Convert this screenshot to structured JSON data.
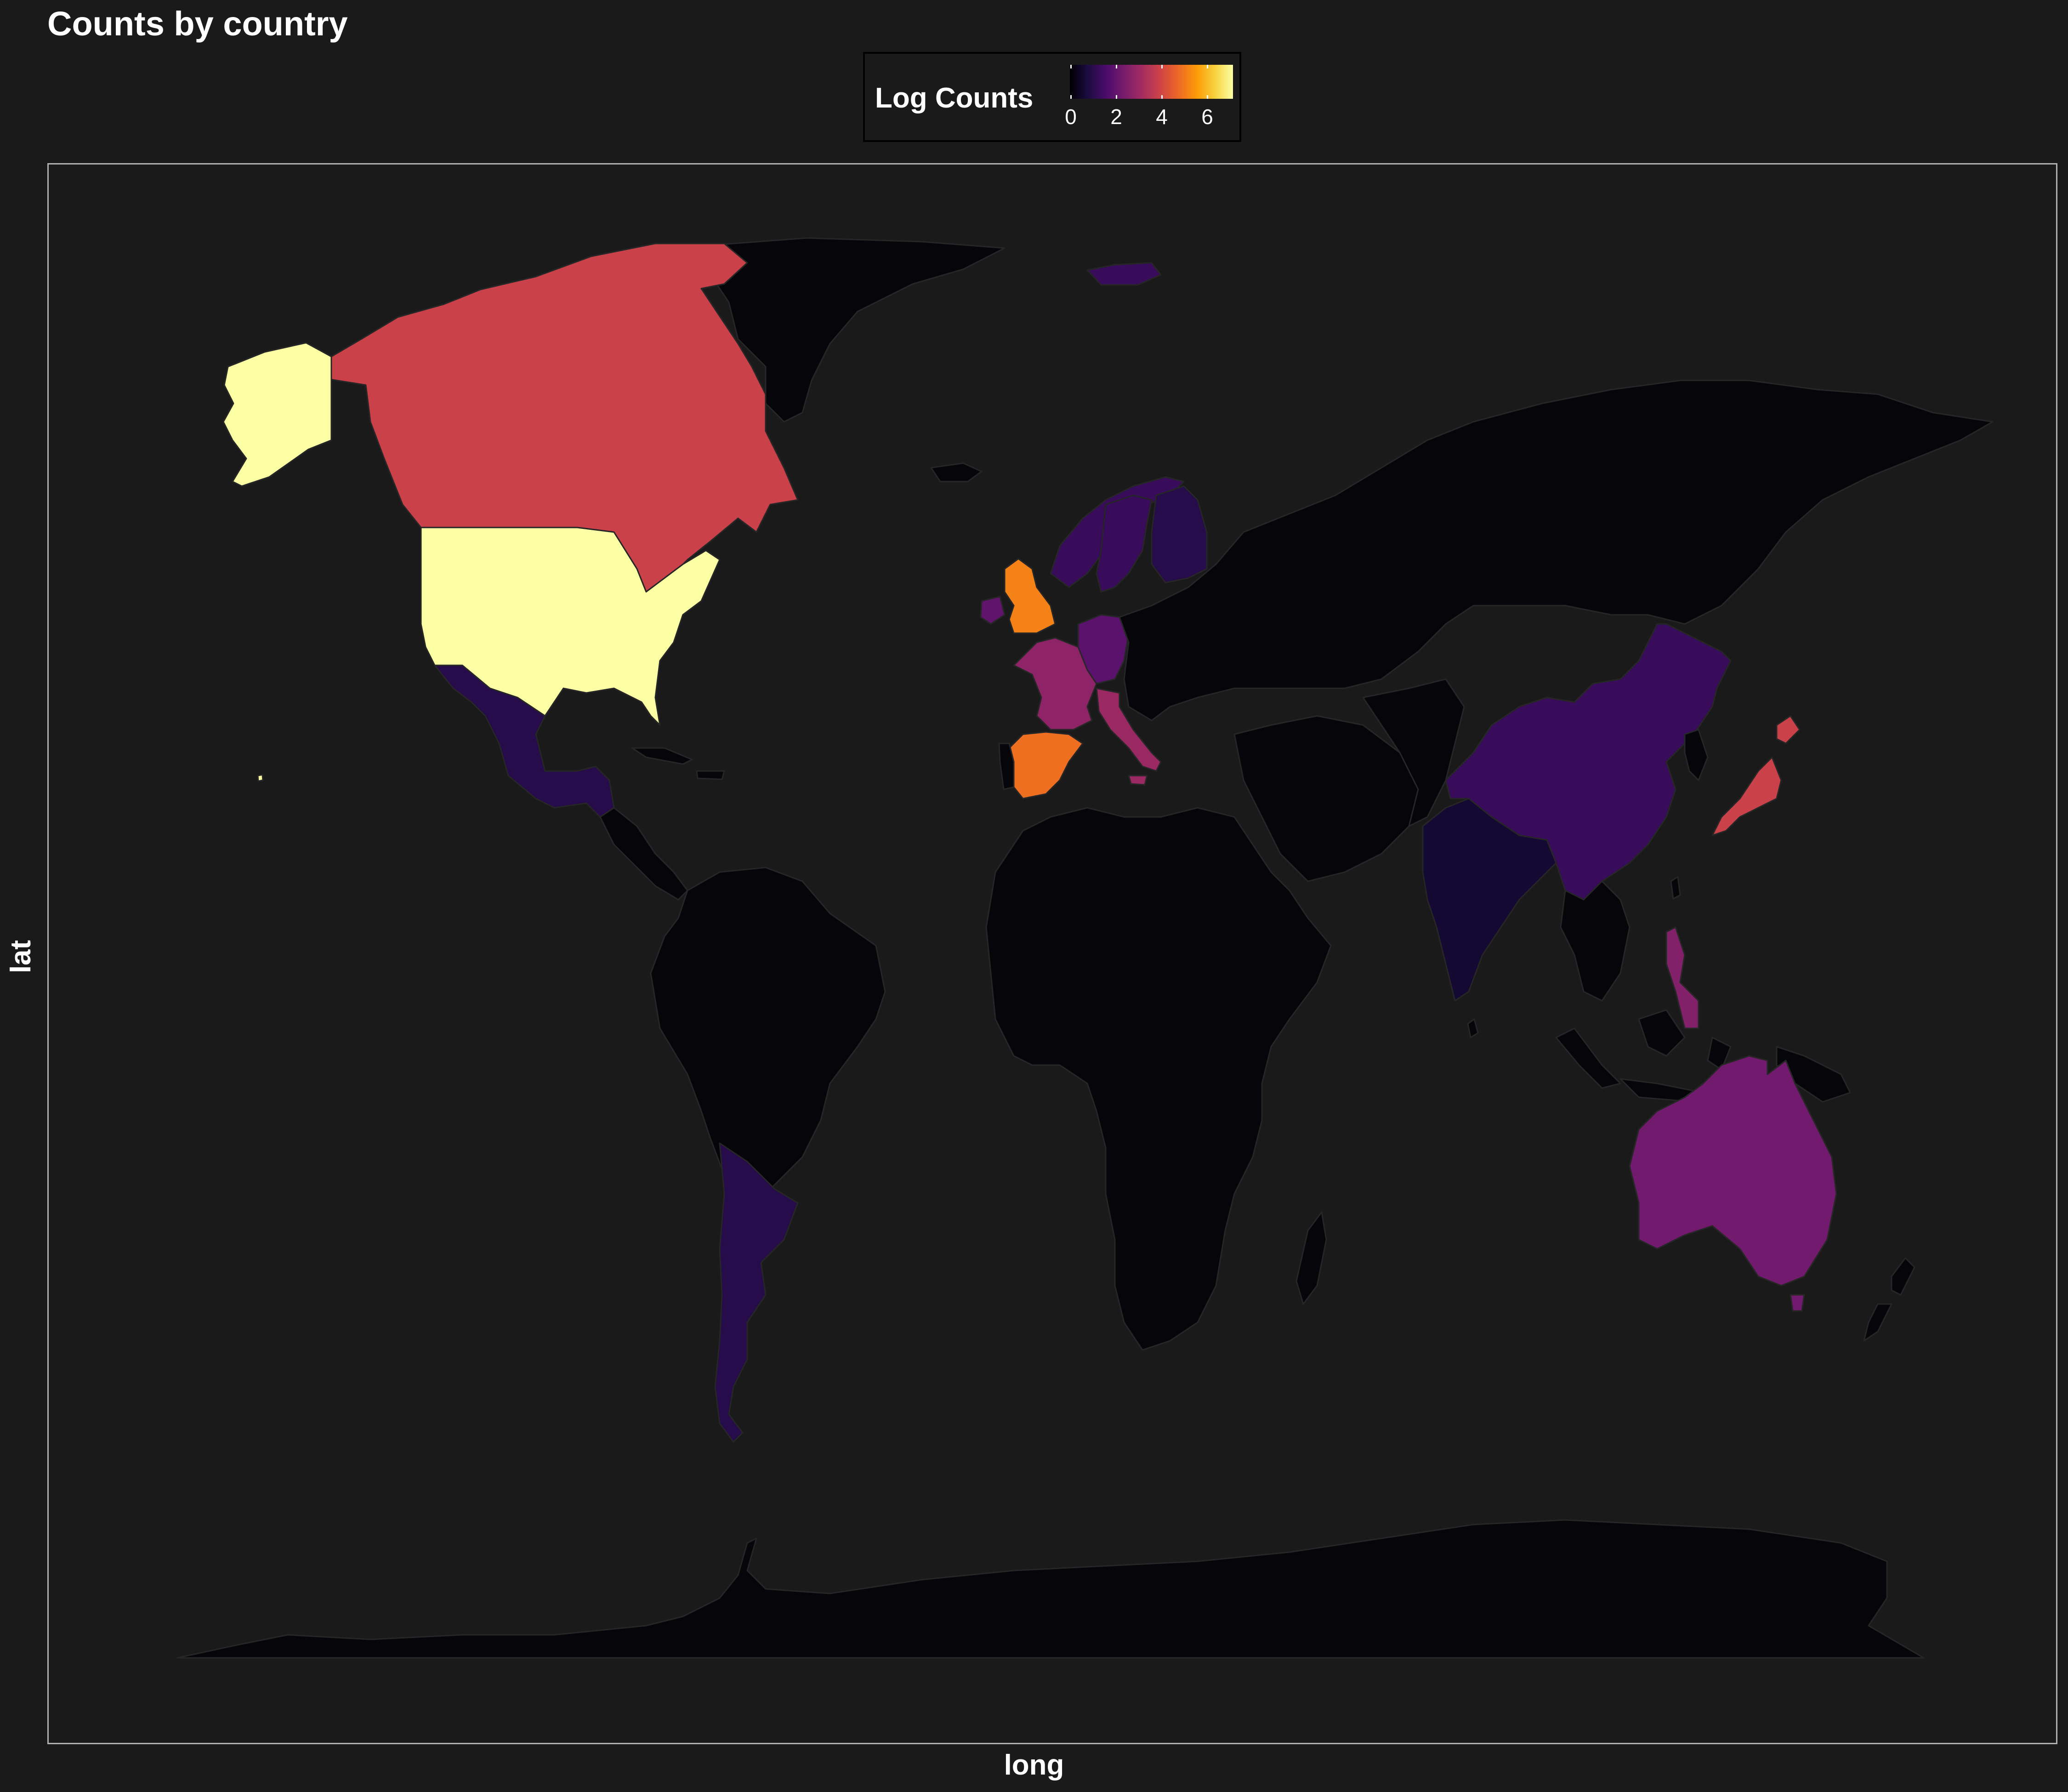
{
  "title": "Counts by country",
  "axes": {
    "xlabel": "long",
    "ylabel": "lat"
  },
  "legend": {
    "title": "Log Counts",
    "ticks": [
      "0",
      "2",
      "4",
      "6"
    ],
    "scale": "inferno",
    "range": [
      0,
      7.2
    ],
    "gradient_colors": [
      "#000004",
      "#1b0c41",
      "#4a0c6b",
      "#781c6d",
      "#a52c60",
      "#cf4446",
      "#ed6925",
      "#fb9b06",
      "#f7d13d",
      "#fcffa4"
    ]
  },
  "colors": {
    "background": "#1a1a1a",
    "no_data": "#06060a",
    "border": "#262626"
  },
  "map_data": {
    "type": "choropleth",
    "value_name": "Log Counts",
    "countries": [
      {
        "name": "United States",
        "value": 7.2
      },
      {
        "name": "Canada",
        "value": 3.9
      },
      {
        "name": "United Kingdom",
        "value": 5.2
      },
      {
        "name": "Spain",
        "value": 4.9
      },
      {
        "name": "Japan",
        "value": 3.9
      },
      {
        "name": "Italy",
        "value": 3.0
      },
      {
        "name": "France",
        "value": 2.8
      },
      {
        "name": "Australia",
        "value": 2.3
      },
      {
        "name": "Philippines",
        "value": 2.6
      },
      {
        "name": "Germany",
        "value": 1.9
      },
      {
        "name": "Ireland",
        "value": 2.0
      },
      {
        "name": "Norway",
        "value": 1.3
      },
      {
        "name": "Sweden",
        "value": 1.3
      },
      {
        "name": "Finland",
        "value": 1.0
      },
      {
        "name": "China",
        "value": 1.3
      },
      {
        "name": "Mexico",
        "value": 1.0
      },
      {
        "name": "Argentina",
        "value": 1.0
      },
      {
        "name": "India",
        "value": 0.6
      },
      {
        "name": "Svalbard",
        "value": 1.3
      }
    ]
  }
}
